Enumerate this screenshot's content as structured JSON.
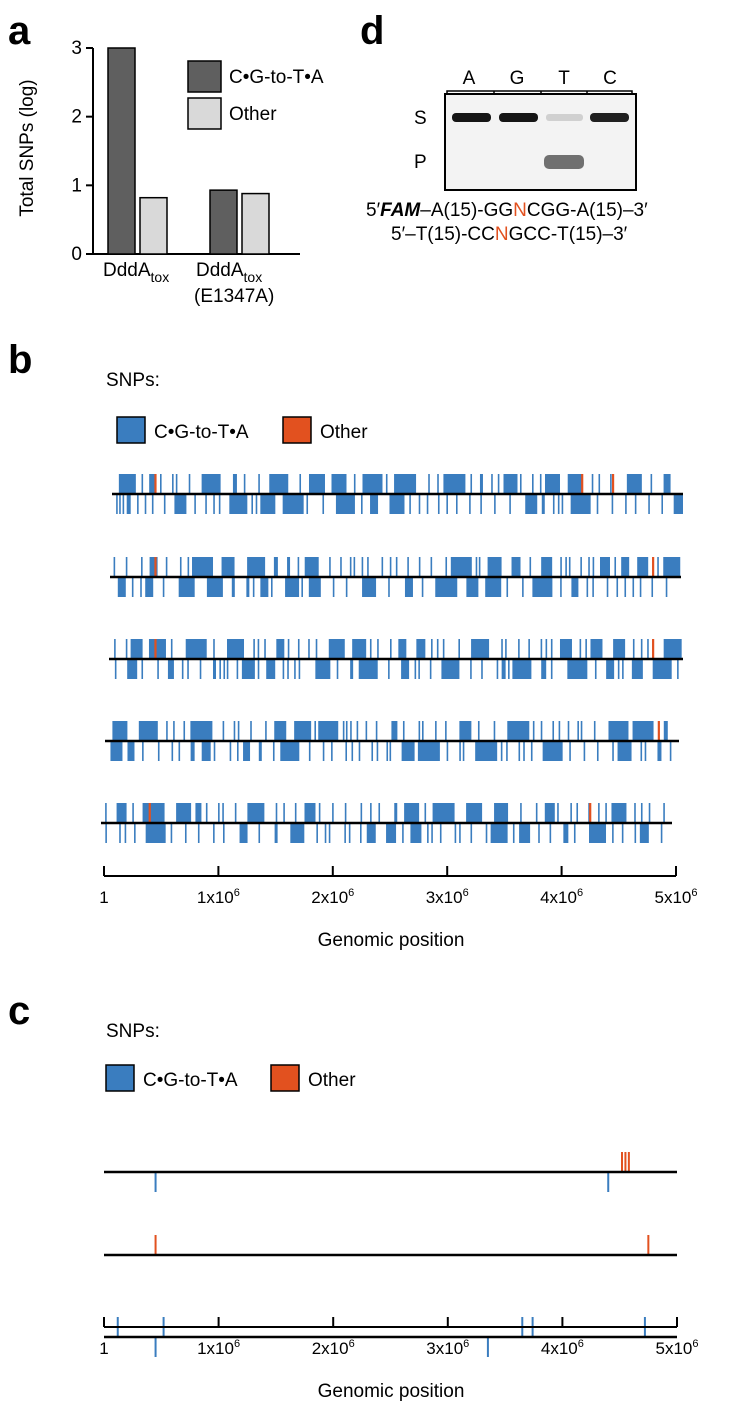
{
  "colors": {
    "ct": "#3a7dbf",
    "other": "#e2511f",
    "bar_dark": "#5f5f5f",
    "bar_light": "#d9d9d9",
    "axis": "#000000"
  },
  "panel_a": {
    "letter": "a",
    "chart_data": {
      "type": "bar",
      "ylabel": "Total SNPs (log)",
      "ylim": [
        0,
        3
      ],
      "yticks": [
        "0",
        "1",
        "2",
        "3"
      ],
      "groups": [
        {
          "label_main": "DddA",
          "label_sub": "tox",
          "label_extra": "",
          "values": [
            3.0,
            0.82
          ]
        },
        {
          "label_main": "DddA",
          "label_sub": "tox",
          "label_extra": "(E1347A)",
          "values": [
            0.93,
            0.88
          ]
        }
      ],
      "series": [
        {
          "name": "C•G-to-T•A",
          "color": "#5f5f5f"
        },
        {
          "name": "Other",
          "color": "#d9d9d9"
        }
      ]
    }
  },
  "panel_d": {
    "letter": "d",
    "lanes": [
      "A",
      "G",
      "T",
      "C"
    ],
    "band_labels": [
      "S",
      "P"
    ],
    "seq_top": {
      "prefix": "5′",
      "fam": "FAM",
      "a": "–A(15)-GG",
      "n": "N",
      "b": "CGG-A(15)–3′"
    },
    "seq_bottom": {
      "a": "5′–T(15)-CC",
      "n": "N",
      "b": "GCC-T(15)–3′"
    }
  },
  "panel_b": {
    "letter": "b",
    "snps_label": "SNPs:",
    "legend": [
      {
        "name": "C•G-to-T•A",
        "key": "ct"
      },
      {
        "name": "Other",
        "key": "other"
      }
    ],
    "xlabel": "Genomic position",
    "xticks": [
      "1",
      "1x10",
      "2x10",
      "3x10",
      "4x10",
      "5x10"
    ],
    "xtick_exp": "6",
    "xlim": [
      1,
      5000000
    ],
    "chart_data": {
      "type": "scatter",
      "tracks": [
        {
          "name": "",
          "other_top": [
            450000,
            4180000,
            4450000
          ],
          "other_bottom": []
        },
        {
          "name": "",
          "other_top": [
            450000,
            4800000
          ],
          "other_bottom": []
        },
        {
          "name": "",
          "other_top": [
            450000,
            4800000
          ],
          "other_bottom": []
        },
        {
          "name": "",
          "other_top": [
            4850000
          ],
          "other_bottom": []
        },
        {
          "name": "",
          "other_top": [
            400000,
            4250000
          ],
          "other_bottom": []
        }
      ]
    }
  },
  "panel_c": {
    "letter": "c",
    "snps_label": "SNPs:",
    "legend": [
      {
        "name": "C•G-to-T•A",
        "key": "ct"
      },
      {
        "name": "Other",
        "key": "other"
      }
    ],
    "xlabel": "Genomic position",
    "xticks": [
      "1",
      "1x10",
      "2x10",
      "3x10",
      "4x10",
      "5x10"
    ],
    "xtick_exp": "6",
    "xlim": [
      1,
      5000000
    ],
    "chart_data": {
      "type": "scatter",
      "tracks": [
        {
          "ct_top": [],
          "ct_bottom": [
            450000,
            4400000
          ],
          "other_top": [
            4520000,
            4550000,
            4580000
          ],
          "other_bottom": []
        },
        {
          "ct_top": [],
          "ct_bottom": [],
          "other_top": [
            450000,
            4750000
          ],
          "other_bottom": []
        },
        {
          "ct_top": [
            120000,
            520000,
            3650000,
            3740000,
            4720000
          ],
          "ct_bottom": [
            450000,
            3350000
          ],
          "other_top": [],
          "other_bottom": []
        }
      ]
    }
  }
}
